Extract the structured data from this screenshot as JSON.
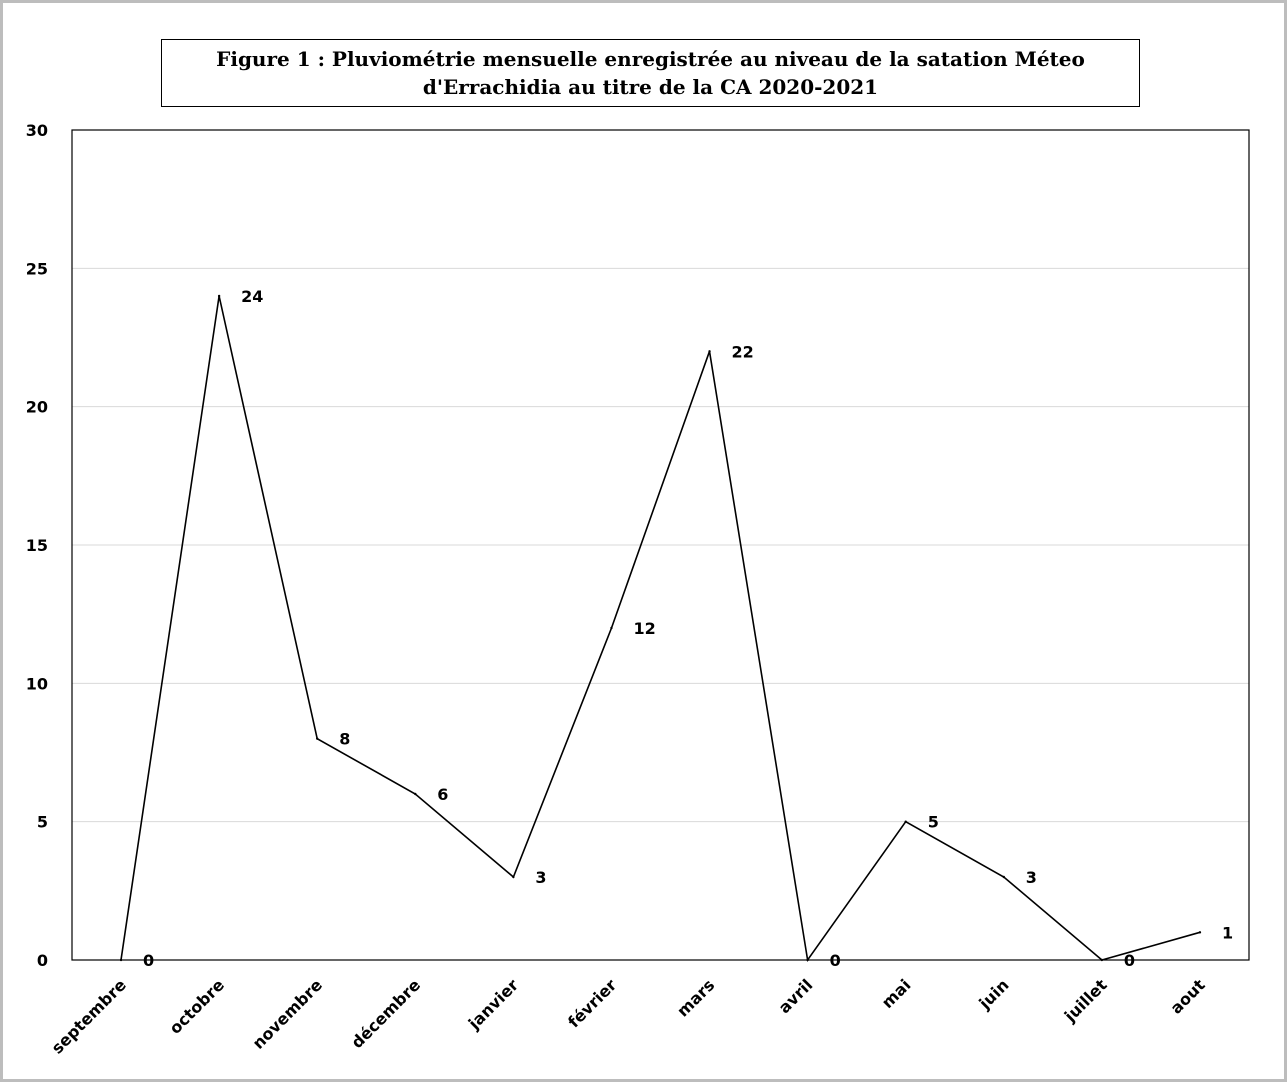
{
  "chart_data": {
    "type": "line",
    "title_lines": [
      "Figure 1 : Pluviométrie mensuelle enregistrée au niveau de la satation Méteo",
      "d'Errachidia au titre de la CA 2020-2021"
    ],
    "categories": [
      "septembre",
      "octobre",
      "novembre",
      "décembre",
      "janvier",
      "février",
      "mars",
      "avril",
      "mai",
      "juin",
      "juillet",
      "aout"
    ],
    "series": [
      {
        "values": [
          0,
          24,
          8,
          6,
          3,
          12,
          22,
          0,
          5,
          3,
          0,
          1
        ],
        "color": "#000000"
      }
    ],
    "data_labels": [
      "0",
      "24",
      "8",
      "6",
      "3",
      "12",
      "22",
      "0",
      "5",
      "3",
      "0",
      "1"
    ],
    "yticks": [
      0,
      5,
      10,
      15,
      20,
      25,
      30
    ],
    "ylim": [
      0,
      30
    ],
    "xlabel": "",
    "ylabel": "",
    "grid": true,
    "gridline_color": "#d9d9d9",
    "legend": "none"
  }
}
